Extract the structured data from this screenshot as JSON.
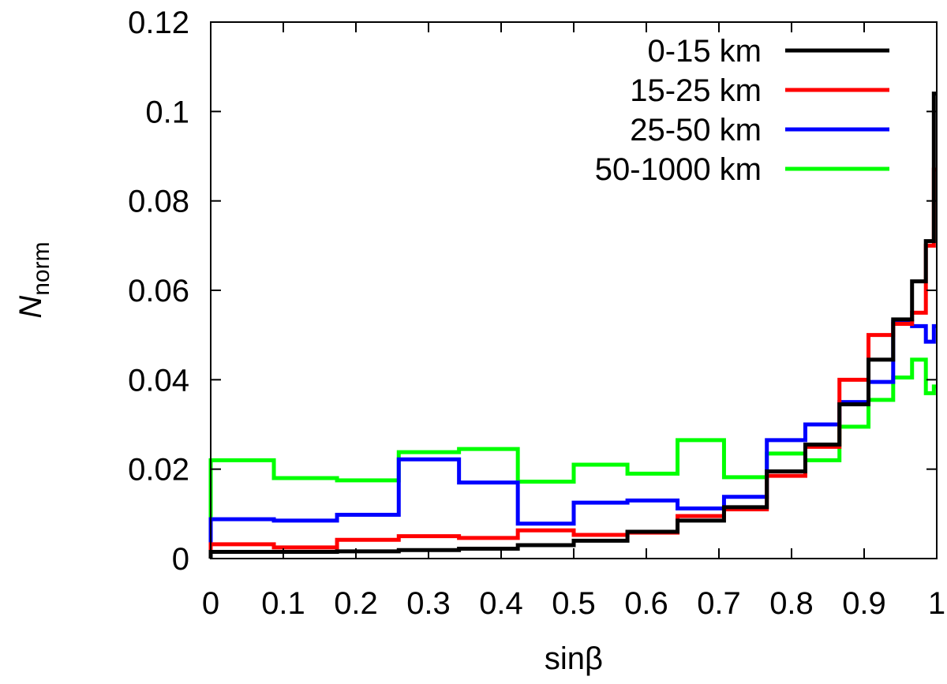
{
  "chart_data": {
    "type": "line",
    "step": true,
    "xlabel": "sinβ",
    "ylabel_main": "N",
    "ylabel_sub": "norm",
    "xlim": [
      0,
      1
    ],
    "ylim": [
      0,
      0.12
    ],
    "xticks": [
      {
        "value": 0,
        "label": "0"
      },
      {
        "value": 0.1,
        "label": "0.1"
      },
      {
        "value": 0.2,
        "label": "0.2"
      },
      {
        "value": 0.3,
        "label": "0.3"
      },
      {
        "value": 0.4,
        "label": "0.4"
      },
      {
        "value": 0.5,
        "label": "0.5"
      },
      {
        "value": 0.6,
        "label": "0.6"
      },
      {
        "value": 0.7,
        "label": "0.7"
      },
      {
        "value": 0.8,
        "label": "0.8"
      },
      {
        "value": 0.9,
        "label": "0.9"
      },
      {
        "value": 1,
        "label": "1"
      }
    ],
    "yticks": [
      {
        "value": 0,
        "label": "0"
      },
      {
        "value": 0.02,
        "label": "0.02"
      },
      {
        "value": 0.04,
        "label": "0.04"
      },
      {
        "value": 0.06,
        "label": "0.06"
      },
      {
        "value": 0.08,
        "label": "0.08"
      },
      {
        "value": 0.1,
        "label": "0.1"
      },
      {
        "value": 0.12,
        "label": "0.12"
      }
    ],
    "grid": false,
    "legend_position": "top-right",
    "series": [
      {
        "name": "0-15 km",
        "color": "#000000",
        "x": [
          0,
          0.087,
          0.174,
          0.259,
          0.342,
          0.423,
          0.5,
          0.574,
          0.643,
          0.707,
          0.766,
          0.819,
          0.866,
          0.906,
          0.94,
          0.966,
          0.985,
          0.996,
          1
        ],
        "y": [
          0.0015,
          0.0015,
          0.0016,
          0.0019,
          0.0022,
          0.003,
          0.004,
          0.006,
          0.0085,
          0.0115,
          0.0195,
          0.0255,
          0.0345,
          0.0445,
          0.0535,
          0.062,
          0.071,
          0.104,
          0.104
        ]
      },
      {
        "name": "15-25 km",
        "color": "#ff0000",
        "x": [
          0,
          0.087,
          0.174,
          0.259,
          0.342,
          0.423,
          0.5,
          0.574,
          0.643,
          0.707,
          0.766,
          0.819,
          0.866,
          0.906,
          0.94,
          0.966,
          0.985,
          0.996,
          1
        ],
        "y": [
          0.0032,
          0.0025,
          0.0042,
          0.005,
          0.0046,
          0.0063,
          0.0053,
          0.0058,
          0.0095,
          0.011,
          0.0185,
          0.025,
          0.04,
          0.05,
          0.0525,
          0.055,
          0.07,
          0.087,
          0.087
        ]
      },
      {
        "name": "25-50 km",
        "color": "#0000ff",
        "x": [
          0,
          0.087,
          0.174,
          0.259,
          0.342,
          0.423,
          0.5,
          0.574,
          0.643,
          0.707,
          0.766,
          0.819,
          0.866,
          0.906,
          0.94,
          0.966,
          0.985,
          0.996,
          1
        ],
        "y": [
          0.0088,
          0.0085,
          0.0098,
          0.0222,
          0.017,
          0.0078,
          0.0125,
          0.013,
          0.0112,
          0.0138,
          0.0265,
          0.03,
          0.035,
          0.0395,
          0.053,
          0.052,
          0.0485,
          0.052,
          0.052
        ]
      },
      {
        "name": "50-1000 km",
        "color": "#00ff00",
        "x": [
          0,
          0.087,
          0.174,
          0.259,
          0.342,
          0.423,
          0.5,
          0.574,
          0.643,
          0.707,
          0.766,
          0.819,
          0.866,
          0.906,
          0.94,
          0.966,
          0.985,
          0.996,
          1
        ],
        "y": [
          0.022,
          0.018,
          0.0175,
          0.0238,
          0.0245,
          0.0172,
          0.021,
          0.019,
          0.0265,
          0.0182,
          0.0235,
          0.022,
          0.0295,
          0.0355,
          0.0405,
          0.0445,
          0.037,
          0.0385,
          0.0385
        ]
      }
    ]
  }
}
